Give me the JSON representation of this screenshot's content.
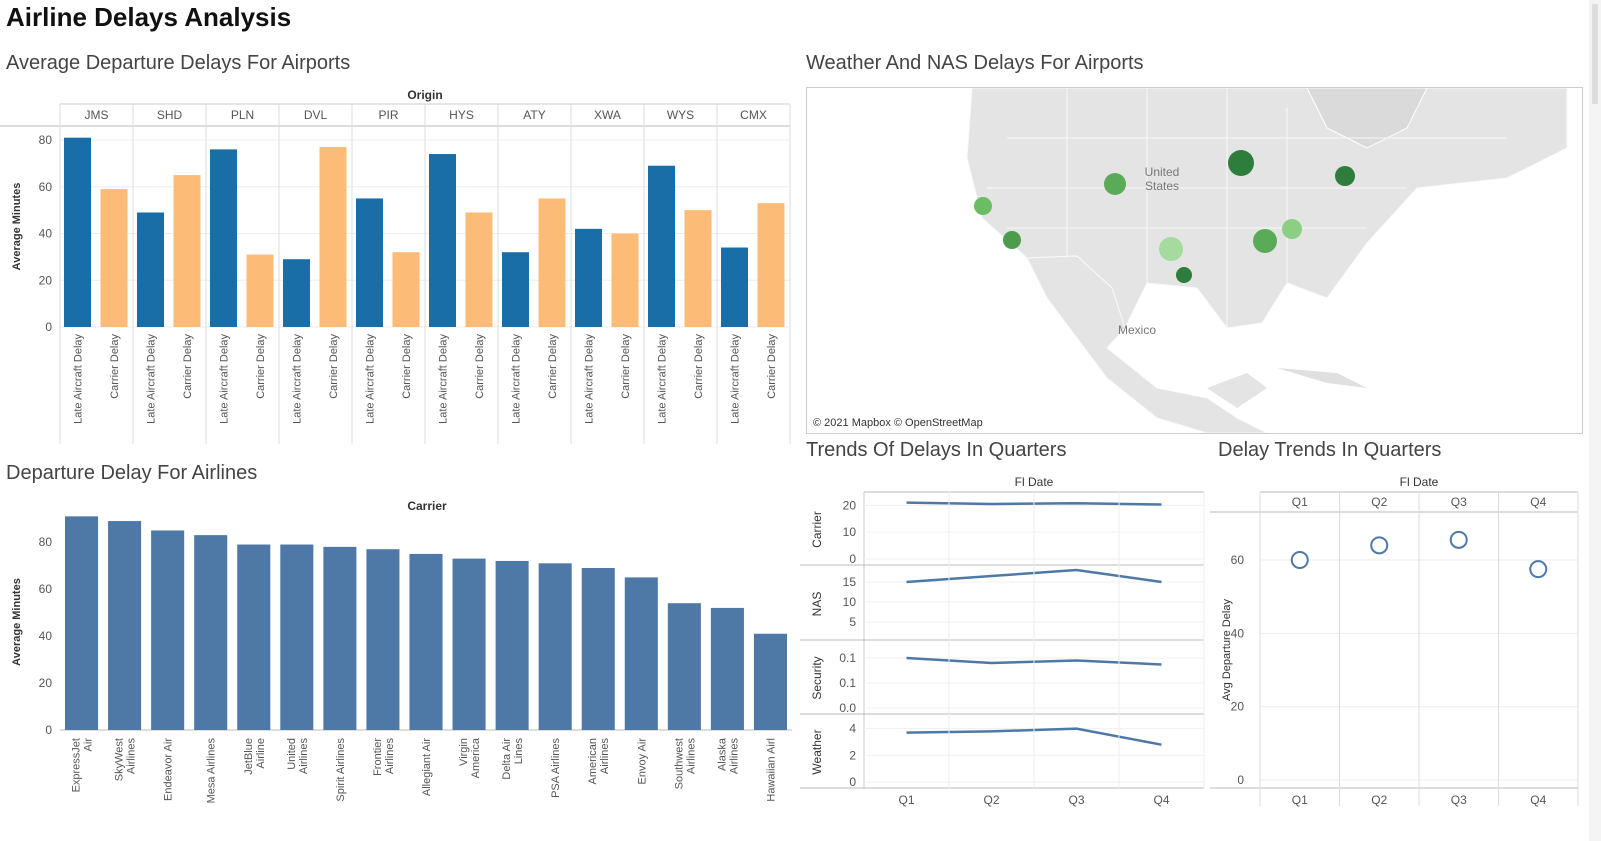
{
  "dashboard": {
    "title": "Airline Delays Analysis"
  },
  "panel_titles": {
    "airports": "Average Departure Delays For Airports",
    "weather": "Weather And NAS Delays For Airports",
    "airlines": "Departure Delay For Airlines",
    "trends": "Trends Of Delays In Quarters",
    "delay_trends": "Delay Trends In Quarters"
  },
  "map": {
    "credit": "© 2021 Mapbox © OpenStreetMap",
    "labels": [
      "United States",
      "Mexico"
    ]
  },
  "colors": {
    "late_aircraft": "#1a6ea8",
    "carrier": "#fdbb78",
    "airline_bar": "#4e79a7",
    "line": "#4e79a7",
    "map_dark": "#2e7d3c",
    "map_mid": "#5aab58",
    "map_light": "#a6dba0"
  },
  "chart_data": [
    {
      "type": "bar",
      "title": "Average Departure Delays For Airports",
      "header": "Origin",
      "ylabel": "Average Minutes",
      "ylim": [
        0,
        86
      ],
      "yticks": [
        0,
        20,
        40,
        60,
        80
      ],
      "categories": [
        "JMS",
        "SHD",
        "PLN",
        "DVL",
        "PIR",
        "HYS",
        "ATY",
        "XWA",
        "WYS",
        "CMX"
      ],
      "series": [
        {
          "name": "Late Aircraft Delay",
          "values": [
            81,
            49,
            76,
            29,
            55,
            74,
            32,
            42,
            69,
            34
          ]
        },
        {
          "name": "Carrier Delay",
          "values": [
            59,
            65,
            31,
            77,
            32,
            49,
            55,
            40,
            50,
            53
          ]
        }
      ]
    },
    {
      "type": "bar",
      "title": "Departure Delay For Airlines",
      "header": "Carrier",
      "ylabel": "Average Minutes",
      "ylim": [
        0,
        92
      ],
      "yticks": [
        0,
        20,
        40,
        60,
        80
      ],
      "categories": [
        "ExpressJet Air",
        "SkyWest Airlines",
        "Endeavor Air",
        "Mesa Airlines",
        "JetBlue Airline",
        "United Airlines",
        "Spirit Airlines",
        "Frontier Airlines",
        "Allegiant Air",
        "Virgin America",
        "Delta Air Lines",
        "PSA Airlines",
        "American Airlines",
        "Envoy Air",
        "Southwest Airlines",
        "Alaska Airlines",
        "Hawaiian Airl"
      ],
      "values": [
        91,
        89,
        85,
        83,
        79,
        79,
        78,
        77,
        75,
        73,
        72,
        71,
        69,
        65,
        54,
        52,
        41
      ]
    },
    {
      "type": "line",
      "title": "Trends Of Delays In Quarters",
      "header": "Fl Date",
      "x": [
        "Q1",
        "Q2",
        "Q3",
        "Q4"
      ],
      "panels": [
        {
          "name": "Carrier",
          "ylim": [
            0,
            22
          ],
          "yticks": [
            0,
            10,
            20
          ],
          "values": [
            21,
            20.5,
            20.8,
            20.3
          ]
        },
        {
          "name": "NAS",
          "ylim": [
            2,
            17
          ],
          "yticks": [
            5,
            10,
            15
          ],
          "values": [
            15,
            16.5,
            18,
            15
          ]
        },
        {
          "name": "Security",
          "ylim": [
            0.0,
            0.12
          ],
          "ytick_labels": [
            "0.0",
            "0.1",
            "0.1"
          ],
          "ytick_values": [
            0.0,
            0.05,
            0.1
          ],
          "values": [
            0.1,
            0.09,
            0.095,
            0.087
          ]
        },
        {
          "name": "Weather",
          "ylim": [
            0,
            4.5
          ],
          "yticks": [
            0,
            2,
            4
          ],
          "values": [
            3.7,
            3.8,
            4.0,
            2.8
          ]
        }
      ]
    },
    {
      "type": "scatter",
      "title": "Delay Trends In Quarters",
      "header": "Fl Date",
      "x": [
        "Q1",
        "Q2",
        "Q3",
        "Q4"
      ],
      "ylabel": "Avg Departure Delay",
      "ylim": [
        0,
        72
      ],
      "yticks": [
        0,
        20,
        40,
        60
      ],
      "values": [
        60,
        64,
        65.5,
        57.5
      ]
    }
  ]
}
